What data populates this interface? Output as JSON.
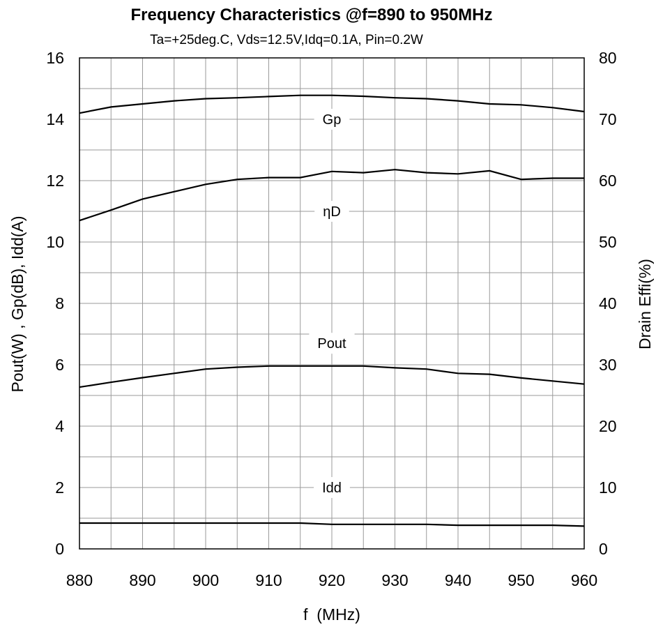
{
  "chart_data": {
    "type": "line",
    "title": "Frequency Characteristics @f=890 to 950MHz",
    "subtitle": "Ta=+25deg.C, Vds=12.5V,Idq=0.1A, Pin=0.2W",
    "xlabel": "f  (MHz)",
    "ylabel_left": "Pout(W) , Gp(dB), Idd(A)",
    "ylabel_right": "Drain Effi(%)",
    "xlim": [
      880,
      960
    ],
    "ylim_left": [
      0,
      16
    ],
    "ylim_right": [
      0,
      80
    ],
    "x_ticks": [
      880,
      890,
      900,
      910,
      920,
      930,
      940,
      950,
      960
    ],
    "y_ticks_left": [
      0,
      2,
      4,
      6,
      8,
      10,
      12,
      14,
      16
    ],
    "y_ticks_right": [
      0,
      10,
      20,
      30,
      40,
      50,
      60,
      70,
      80
    ],
    "grid": true,
    "x": [
      880,
      885,
      890,
      895,
      900,
      905,
      910,
      915,
      920,
      925,
      930,
      935,
      940,
      945,
      950,
      955,
      960
    ],
    "series": [
      {
        "name": "Gp",
        "axis": "left",
        "label_at": [
          920,
          14.0
        ],
        "values": [
          14.2,
          14.4,
          14.5,
          14.6,
          14.67,
          14.7,
          14.74,
          14.78,
          14.78,
          14.75,
          14.7,
          14.67,
          14.6,
          14.5,
          14.47,
          14.38,
          14.25
        ]
      },
      {
        "name": "ηD",
        "axis": "right",
        "label_at": [
          920,
          55.0
        ],
        "values": [
          53.5,
          55.2,
          57.0,
          58.2,
          59.4,
          60.2,
          60.5,
          60.5,
          61.5,
          61.3,
          61.8,
          61.3,
          61.1,
          61.6,
          60.2,
          60.4,
          60.4
        ]
      },
      {
        "name": "Pout",
        "axis": "left",
        "label_at": [
          920,
          6.7
        ],
        "values": [
          5.27,
          5.43,
          5.58,
          5.72,
          5.86,
          5.92,
          5.96,
          5.96,
          5.96,
          5.96,
          5.9,
          5.86,
          5.72,
          5.69,
          5.57,
          5.47,
          5.37
        ]
      },
      {
        "name": "Idd",
        "axis": "left",
        "label_at": [
          920,
          2.0
        ],
        "values": [
          0.84,
          0.84,
          0.84,
          0.84,
          0.84,
          0.84,
          0.84,
          0.84,
          0.8,
          0.8,
          0.8,
          0.8,
          0.77,
          0.77,
          0.77,
          0.77,
          0.74
        ]
      }
    ]
  }
}
